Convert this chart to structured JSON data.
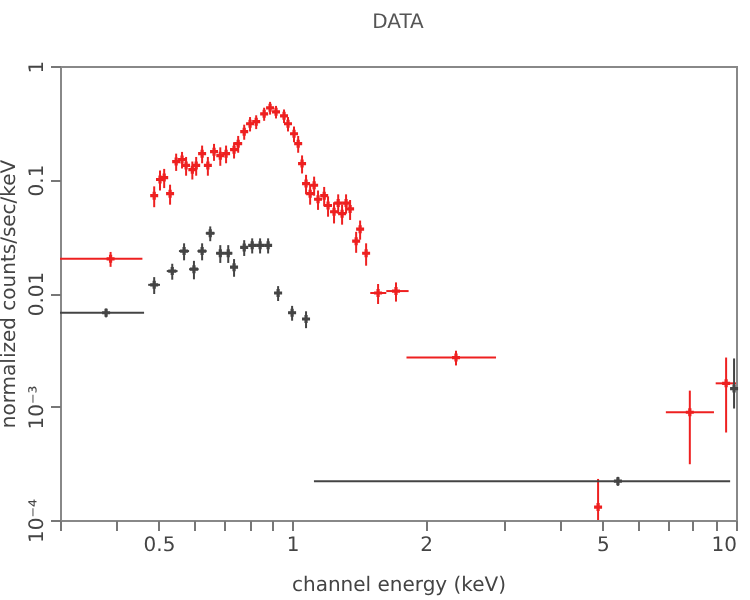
{
  "chart_data": {
    "type": "scatter",
    "title": "DATA",
    "xlabel": "channel energy (keV)",
    "ylabel": "normalized counts/sec/keV",
    "log": "xy",
    "grid": false,
    "marker": "cross",
    "xlim": [
      0.3,
      10
    ],
    "ylim": [
      0.0001,
      1
    ],
    "xticks": [
      {
        "value": 0.3,
        "label": null
      },
      {
        "value": 0.4,
        "label": null
      },
      0.5,
      {
        "value": 0.6,
        "label": null
      },
      {
        "value": 0.7,
        "label": null
      },
      {
        "value": 0.8,
        "label": null
      },
      {
        "value": 0.9,
        "label": null
      },
      1,
      2,
      {
        "value": 3,
        "label": null
      },
      {
        "value": 4,
        "label": null
      },
      5,
      {
        "value": 6,
        "label": null
      },
      {
        "value": 7,
        "label": null
      },
      {
        "value": 8,
        "label": null
      },
      {
        "value": 9,
        "label": null
      },
      10
    ],
    "yticks": [
      {
        "value": 0.0001,
        "label": "10⁻⁴"
      },
      {
        "value": 0.001,
        "label": "10⁻³"
      },
      0.01,
      0.1,
      1
    ],
    "series": [
      {
        "color": "#ee2020",
        "x": [
          0.39,
          0.489,
          0.504,
          0.515,
          0.531,
          0.548,
          0.565,
          0.577,
          0.596,
          0.608,
          0.627,
          0.646,
          0.667,
          0.689,
          0.71,
          0.74,
          0.756,
          0.78,
          0.804,
          0.83,
          0.865,
          0.892,
          0.92,
          0.959,
          0.979,
          1.01,
          1.032,
          1.053,
          1.075,
          1.098,
          1.121,
          1.144,
          1.181,
          1.205,
          1.243,
          1.27,
          1.296,
          1.323,
          1.351,
          1.394,
          1.423,
          1.468,
          1.562,
          1.714,
          2.34,
          4.89,
          7.87,
          9.5
        ],
        "values": [
          0.02,
          0.072,
          0.1,
          0.104,
          0.075,
          0.144,
          0.15,
          0.133,
          0.122,
          0.133,
          0.169,
          0.133,
          0.176,
          0.162,
          0.169,
          0.183,
          0.207,
          0.264,
          0.31,
          0.323,
          0.379,
          0.428,
          0.395,
          0.364,
          0.31,
          0.253,
          0.207,
          0.138,
          0.092,
          0.075,
          0.089,
          0.067,
          0.072,
          0.059,
          0.052,
          0.062,
          0.05,
          0.062,
          0.055,
          0.0286,
          0.0365,
          0.0224,
          0.01,
          0.0104,
          0.0027,
          0.00013,
          0.00089,
          0.0016
        ],
        "errors": [
          0.003,
          0.015,
          0.02,
          0.02,
          0.015,
          0.025,
          0.025,
          0.025,
          0.022,
          0.025,
          0.03,
          0.025,
          0.03,
          0.03,
          0.03,
          0.03,
          0.035,
          0.04,
          0.045,
          0.045,
          0.05,
          0.055,
          0.05,
          0.05,
          0.045,
          0.04,
          0.035,
          0.025,
          0.018,
          0.015,
          0.017,
          0.013,
          0.014,
          0.012,
          0.011,
          0.012,
          0.01,
          0.012,
          0.011,
          0.006,
          0.007,
          0.005,
          0.002,
          0.002,
          0.0004,
          [
            0.0001,
            0.00023
          ],
          [
            0.00031,
            0.00138
          ],
          [
            0.00059,
            0.0027
          ]
        ],
        "xerrors": [
          [
            0.3,
            0.46
          ],
          0.007,
          0.007,
          0.007,
          0.007,
          0.008,
          0.008,
          0.008,
          0.008,
          0.008,
          0.009,
          0.009,
          0.009,
          0.01,
          0.01,
          0.01,
          0.011,
          0.011,
          0.011,
          0.012,
          0.012,
          0.012,
          0.013,
          0.013,
          0.013,
          0.014,
          0.014,
          0.014,
          0.015,
          0.015,
          0.015,
          0.016,
          0.016,
          0.016,
          0.017,
          0.017,
          0.018,
          0.018,
          0.018,
          0.019,
          0.019,
          0.02,
          [
            1.5,
            1.63
          ],
          [
            1.63,
            1.83
          ],
          [
            1.81,
            2.88
          ],
          null,
          [
            6.95,
            8.92
          ],
          [
            9.0,
            10
          ]
        ]
      },
      {
        "color": "#444444",
        "x": [
          0.381,
          0.489,
          0.537,
          0.571,
          0.601,
          0.627,
          0.654,
          0.689,
          0.718,
          0.74,
          0.78,
          0.813,
          0.847,
          0.883,
          0.93,
          1.0,
          1.075,
          5.42,
          9.9
        ],
        "values": [
          0.0067,
          0.0118,
          0.0156,
          0.0234,
          0.0162,
          0.0234,
          0.0336,
          0.0224,
          0.0224,
          0.0169,
          0.0252,
          0.0263,
          0.0263,
          0.0263,
          0.01,
          0.0067,
          0.0059,
          0.00022,
          0.00144
        ],
        "errors": [
          0.0006,
          0.002,
          0.0025,
          0.004,
          0.003,
          0.004,
          0.005,
          0.004,
          0.004,
          0.003,
          0.004,
          0.004,
          0.004,
          0.004,
          0.0015,
          0.001,
          0.001,
          2e-05,
          [
            0.00096,
            0.00265
          ]
        ],
        "xerrors": [
          [
            0.3,
            0.464
          ],
          0.015,
          0.015,
          0.015,
          0.015,
          0.015,
          0.015,
          0.015,
          0.015,
          0.015,
          0.015,
          0.015,
          0.015,
          0.015,
          0.018,
          0.02,
          0.02,
          [
            1.12,
            9.7
          ],
          null
        ]
      }
    ]
  }
}
